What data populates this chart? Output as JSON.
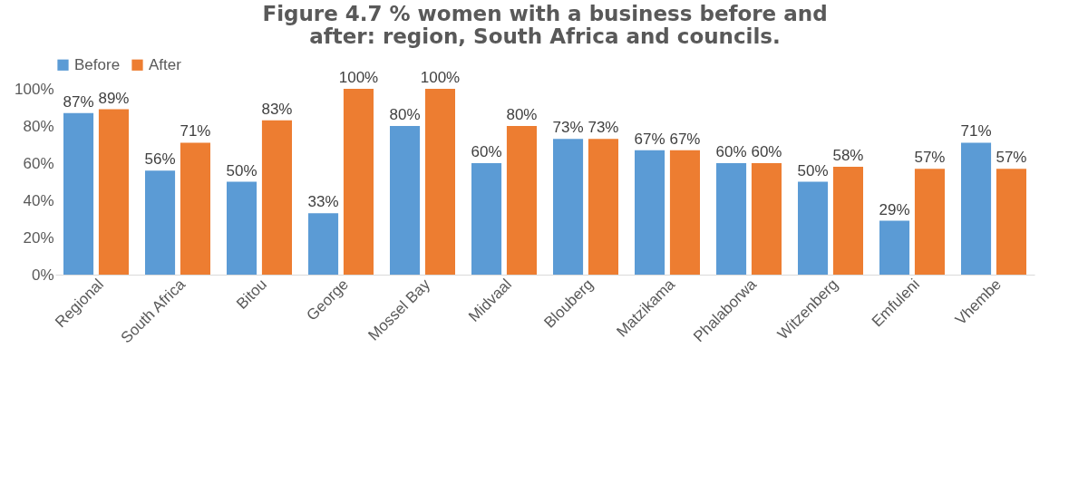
{
  "chart_data": {
    "type": "bar",
    "title": "Figure 4.7 % women with a business before and after: region, South Africa and councils.",
    "categories": [
      "Regional",
      "South Africa",
      "Bitou",
      "George",
      "Mossel Bay",
      "Midvaal",
      "Blouberg",
      "Matzikama",
      "Phalaborwa",
      "Witzenberg",
      "Emfuleni",
      "Vhembe"
    ],
    "series": [
      {
        "name": "Before",
        "color": "#5b9bd5",
        "values": [
          87,
          56,
          50,
          33,
          80,
          60,
          73,
          67,
          60,
          50,
          29,
          71
        ],
        "value_labels": [
          "87%",
          "56%",
          "50%",
          "33%",
          "80%",
          "60%",
          "73%",
          "67%",
          "60%",
          "50%",
          "29%",
          "71%"
        ]
      },
      {
        "name": "After",
        "color": "#ed7d31",
        "values": [
          89,
          71,
          83,
          100,
          100,
          80,
          73,
          67,
          60,
          58,
          57,
          57
        ],
        "value_labels": [
          "89%",
          "71%",
          "83%",
          "100%",
          "100%",
          "80%",
          "73%",
          "67%",
          "60%",
          "58%",
          "57%",
          "57%"
        ]
      }
    ],
    "ylim": [
      0,
      100
    ],
    "yticks": [
      {
        "value": 0,
        "label": "0%"
      },
      {
        "value": 20,
        "label": "20%"
      },
      {
        "value": 40,
        "label": "40%"
      },
      {
        "value": 60,
        "label": "60%"
      },
      {
        "value": 80,
        "label": "80%"
      },
      {
        "value": 100,
        "label": "100%"
      }
    ],
    "legend": "top",
    "grid": false
  }
}
